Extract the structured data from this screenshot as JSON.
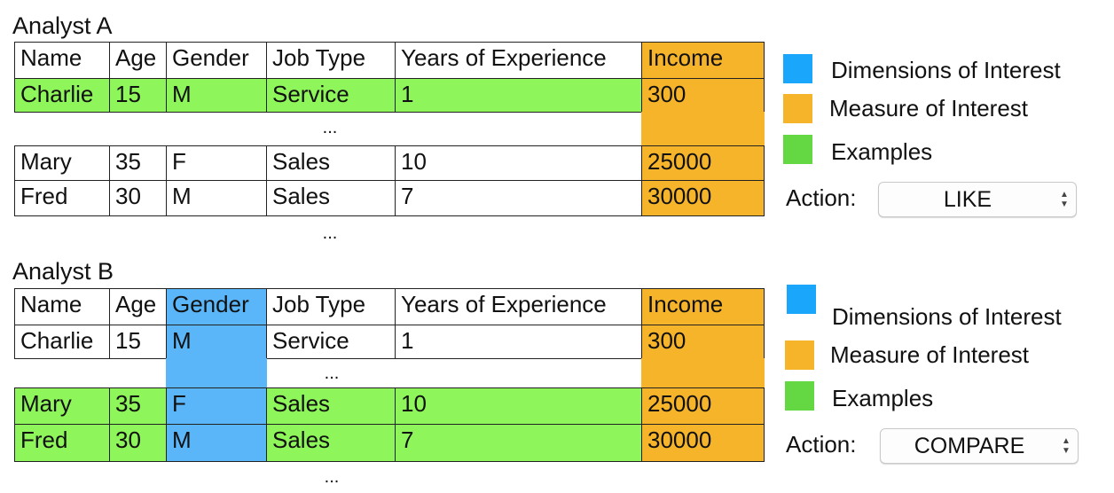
{
  "panels": [
    {
      "title": "Analyst A",
      "headers": [
        "Name",
        "Age",
        "Gender",
        "Job Type",
        "Years of Experience",
        "Income"
      ],
      "rows": [
        [
          "Charlie",
          "15",
          "M",
          "Service",
          "1",
          "300"
        ],
        [
          "Mary",
          "35",
          "F",
          "Sales",
          "10",
          "25000"
        ],
        [
          "Fred",
          "30",
          "M",
          "Sales",
          "7",
          "30000"
        ]
      ],
      "ellipsis": "...",
      "legend": [
        "Dimensions of Interest",
        "Measure of Interest",
        "Examples"
      ],
      "action_label": "Action:",
      "action_value": "LIKE"
    },
    {
      "title": "Analyst B",
      "headers": [
        "Name",
        "Age",
        "Gender",
        "Job Type",
        "Years of Experience",
        "Income"
      ],
      "rows": [
        [
          "Charlie",
          "15",
          "M",
          "Service",
          "1",
          "300"
        ],
        [
          "Mary",
          "35",
          "F",
          "Sales",
          "10",
          "25000"
        ],
        [
          "Fred",
          "30",
          "M",
          "Sales",
          "7",
          "30000"
        ]
      ],
      "ellipsis": "...",
      "legend": [
        "Dimensions of Interest",
        "Measure of Interest",
        "Examples"
      ],
      "action_label": "Action:",
      "action_value": "COMPARE"
    }
  ],
  "colors": {
    "dimension": "#5bb6f9",
    "measure": "#f6b42b",
    "example": "#8ef55a",
    "legend_example": "#63d843",
    "legend_dimension": "#1aa7fb"
  }
}
